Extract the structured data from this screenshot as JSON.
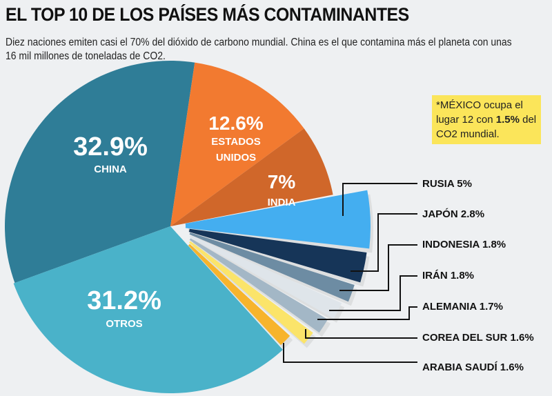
{
  "title": "EL TOP 10 DE LOS PAÍSES MÁS CONTAMINANTES",
  "subtitle": "Diez naciones emiten casi el 70% del dióxido de carbono mundial. China es el que contamina más el planeta con unas 16 mil millones de toneladas de CO2.",
  "note": {
    "pre": "*MÉXICO ocupa el lugar 12 con ",
    "bold": "1.5%",
    "post": " del CO2 mundial."
  },
  "chart_data": {
    "type": "pie",
    "unit": "%",
    "slices": [
      {
        "label": "CHINA",
        "value": 32.9,
        "value_text": "32.9%",
        "color": "#2f7d97"
      },
      {
        "label": "ESTADOS UNIDOS",
        "label_lines": [
          "ESTADOS",
          "UNIDOS"
        ],
        "value": 12.6,
        "value_text": "12.6%",
        "color": "#f27a30"
      },
      {
        "label": "INDIA",
        "value": 7,
        "value_text": "7%",
        "color": "#d0672a"
      },
      {
        "label": "RUSIA",
        "value": 5,
        "value_text": "RUSIA 5%",
        "color": "#44aef0"
      },
      {
        "label": "JAPÓN",
        "value": 2.8,
        "value_text": "JAPÓN 2.8%",
        "color": "#163558"
      },
      {
        "label": "INDONESIA",
        "value": 1.8,
        "value_text": "INDONESIA 1.8%",
        "color": "#6d8ca3"
      },
      {
        "label": "IRÁN",
        "value": 1.8,
        "value_text": "IRÁN 1.8%",
        "color": "#dfe5ea"
      },
      {
        "label": "ALEMANIA",
        "value": 1.7,
        "value_text": "ALEMANIA 1.7%",
        "color": "#a3b7c6"
      },
      {
        "label": "COREA DEL SUR",
        "value": 1.6,
        "value_text": "COREA DEL SUR 1.6%",
        "color": "#fbe46a"
      },
      {
        "label": "ARABIA SAUDÍ",
        "value": 1.6,
        "value_text": "ARABIA SAUDÍ 1.6%",
        "color": "#f7b42c"
      },
      {
        "label": "OTROS",
        "value": 31.2,
        "value_text": "31.2%",
        "color": "#4ab2c9"
      }
    ]
  }
}
